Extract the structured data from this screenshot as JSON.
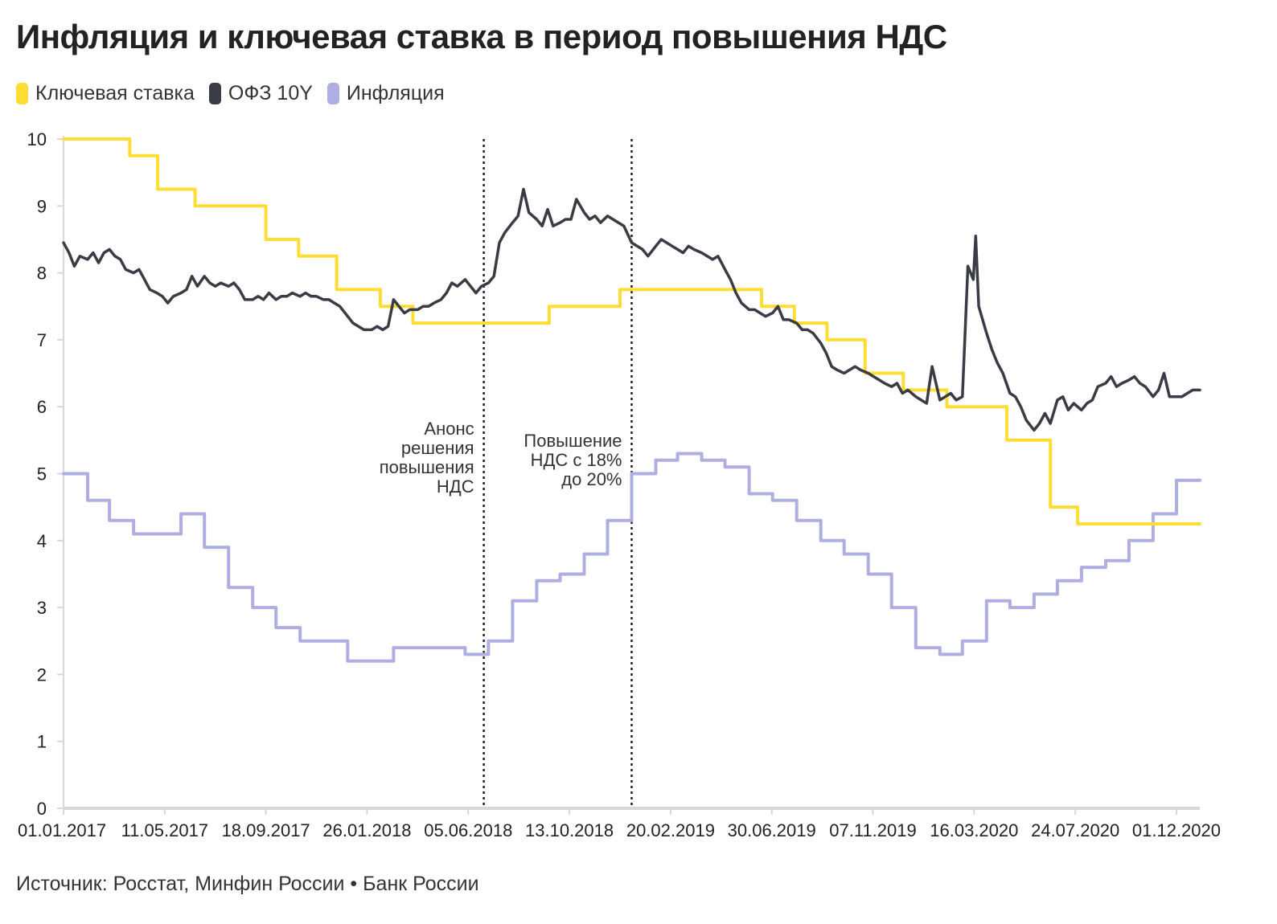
{
  "chart_data": {
    "type": "line",
    "title": "Инфляция и ключевая ставка в период повышения НДС",
    "source": "Источник: Росстат, Минфин России • Банк России",
    "ylim": [
      0,
      10
    ],
    "y_ticks": [
      "0",
      "1",
      "2",
      "3",
      "4",
      "5",
      "6",
      "7",
      "8",
      "9",
      "10"
    ],
    "x_range": [
      "2017-01-01",
      "2020-12-31"
    ],
    "x_tick_labels": [
      "01.01.2017",
      "11.05.2017",
      "18.09.2017",
      "26.01.2018",
      "05.06.2018",
      "13.10.2018",
      "20.02.2019",
      "30.06.2019",
      "07.11.2019",
      "16.03.2020",
      "24.07.2020",
      "01.12.2020"
    ],
    "x_tick_dates": [
      "2017-01-01",
      "2017-05-11",
      "2017-09-18",
      "2018-01-26",
      "2018-06-05",
      "2018-10-13",
      "2019-02-20",
      "2019-06-30",
      "2019-11-07",
      "2020-03-16",
      "2020-07-24",
      "2020-12-01"
    ],
    "legend_position": "top-left",
    "grid": false,
    "series": [
      {
        "name": "Ключевая ставка",
        "color": "#FFDD33",
        "step": true,
        "points": [
          [
            "2017-01-01",
            10.0
          ],
          [
            "2017-03-27",
            9.75
          ],
          [
            "2017-05-02",
            9.25
          ],
          [
            "2017-06-19",
            9.0
          ],
          [
            "2017-09-18",
            8.5
          ],
          [
            "2017-10-30",
            8.25
          ],
          [
            "2017-12-18",
            7.75
          ],
          [
            "2018-02-12",
            7.5
          ],
          [
            "2018-03-26",
            7.25
          ],
          [
            "2018-09-17",
            7.5
          ],
          [
            "2018-12-17",
            7.75
          ],
          [
            "2019-06-17",
            7.5
          ],
          [
            "2019-07-29",
            7.25
          ],
          [
            "2019-09-09",
            7.0
          ],
          [
            "2019-10-28",
            6.5
          ],
          [
            "2019-12-16",
            6.25
          ],
          [
            "2020-02-10",
            6.0
          ],
          [
            "2020-04-27",
            5.5
          ],
          [
            "2020-06-22",
            4.5
          ],
          [
            "2020-07-27",
            4.25
          ],
          [
            "2020-12-31",
            4.25
          ]
        ]
      },
      {
        "name": "ОФЗ 10Y",
        "color": "#3a3b45",
        "step": false,
        "points": [
          [
            "2017-01-01",
            8.45
          ],
          [
            "2017-01-08",
            8.3
          ],
          [
            "2017-01-15",
            8.1
          ],
          [
            "2017-01-22",
            8.25
          ],
          [
            "2017-02-01",
            8.2
          ],
          [
            "2017-02-08",
            8.3
          ],
          [
            "2017-02-15",
            8.15
          ],
          [
            "2017-02-22",
            8.3
          ],
          [
            "2017-03-01",
            8.35
          ],
          [
            "2017-03-08",
            8.25
          ],
          [
            "2017-03-15",
            8.2
          ],
          [
            "2017-03-22",
            8.05
          ],
          [
            "2017-04-01",
            8.0
          ],
          [
            "2017-04-08",
            8.05
          ],
          [
            "2017-04-15",
            7.9
          ],
          [
            "2017-04-22",
            7.75
          ],
          [
            "2017-05-01",
            7.7
          ],
          [
            "2017-05-08",
            7.65
          ],
          [
            "2017-05-15",
            7.55
          ],
          [
            "2017-05-22",
            7.65
          ],
          [
            "2017-06-01",
            7.7
          ],
          [
            "2017-06-08",
            7.75
          ],
          [
            "2017-06-15",
            7.95
          ],
          [
            "2017-06-22",
            7.8
          ],
          [
            "2017-07-01",
            7.95
          ],
          [
            "2017-07-08",
            7.85
          ],
          [
            "2017-07-15",
            7.8
          ],
          [
            "2017-07-22",
            7.85
          ],
          [
            "2017-08-01",
            7.8
          ],
          [
            "2017-08-08",
            7.85
          ],
          [
            "2017-08-15",
            7.75
          ],
          [
            "2017-08-22",
            7.6
          ],
          [
            "2017-09-01",
            7.6
          ],
          [
            "2017-09-08",
            7.65
          ],
          [
            "2017-09-15",
            7.6
          ],
          [
            "2017-09-22",
            7.7
          ],
          [
            "2017-10-01",
            7.6
          ],
          [
            "2017-10-08",
            7.65
          ],
          [
            "2017-10-15",
            7.65
          ],
          [
            "2017-10-22",
            7.7
          ],
          [
            "2017-11-01",
            7.65
          ],
          [
            "2017-11-08",
            7.7
          ],
          [
            "2017-11-15",
            7.65
          ],
          [
            "2017-11-22",
            7.65
          ],
          [
            "2017-12-01",
            7.6
          ],
          [
            "2017-12-08",
            7.6
          ],
          [
            "2017-12-15",
            7.55
          ],
          [
            "2017-12-22",
            7.5
          ],
          [
            "2018-01-01",
            7.35
          ],
          [
            "2018-01-08",
            7.25
          ],
          [
            "2018-01-15",
            7.2
          ],
          [
            "2018-01-22",
            7.15
          ],
          [
            "2018-02-01",
            7.15
          ],
          [
            "2018-02-08",
            7.2
          ],
          [
            "2018-02-15",
            7.15
          ],
          [
            "2018-02-22",
            7.2
          ],
          [
            "2018-03-01",
            7.6
          ],
          [
            "2018-03-08",
            7.5
          ],
          [
            "2018-03-15",
            7.4
          ],
          [
            "2018-03-22",
            7.45
          ],
          [
            "2018-04-01",
            7.45
          ],
          [
            "2018-04-08",
            7.5
          ],
          [
            "2018-04-15",
            7.5
          ],
          [
            "2018-04-22",
            7.55
          ],
          [
            "2018-05-01",
            7.6
          ],
          [
            "2018-05-08",
            7.7
          ],
          [
            "2018-05-15",
            7.85
          ],
          [
            "2018-05-22",
            7.8
          ],
          [
            "2018-06-01",
            7.9
          ],
          [
            "2018-06-08",
            7.8
          ],
          [
            "2018-06-15",
            7.7
          ],
          [
            "2018-06-22",
            7.8
          ],
          [
            "2018-07-01",
            7.85
          ],
          [
            "2018-07-08",
            7.95
          ],
          [
            "2018-07-15",
            8.45
          ],
          [
            "2018-07-22",
            8.6
          ],
          [
            "2018-08-01",
            8.75
          ],
          [
            "2018-08-08",
            8.85
          ],
          [
            "2018-08-15",
            9.25
          ],
          [
            "2018-08-22",
            8.9
          ],
          [
            "2018-09-01",
            8.8
          ],
          [
            "2018-09-08",
            8.7
          ],
          [
            "2018-09-15",
            8.95
          ],
          [
            "2018-09-22",
            8.7
          ],
          [
            "2018-10-01",
            8.75
          ],
          [
            "2018-10-08",
            8.8
          ],
          [
            "2018-10-15",
            8.8
          ],
          [
            "2018-10-22",
            9.1
          ],
          [
            "2018-11-01",
            8.9
          ],
          [
            "2018-11-08",
            8.8
          ],
          [
            "2018-11-15",
            8.85
          ],
          [
            "2018-11-22",
            8.75
          ],
          [
            "2018-12-01",
            8.85
          ],
          [
            "2018-12-08",
            8.8
          ],
          [
            "2018-12-15",
            8.75
          ],
          [
            "2018-12-22",
            8.7
          ],
          [
            "2019-01-01",
            8.45
          ],
          [
            "2019-01-08",
            8.4
          ],
          [
            "2019-01-15",
            8.35
          ],
          [
            "2019-01-22",
            8.25
          ],
          [
            "2019-02-01",
            8.4
          ],
          [
            "2019-02-08",
            8.5
          ],
          [
            "2019-02-15",
            8.45
          ],
          [
            "2019-02-22",
            8.4
          ],
          [
            "2019-03-01",
            8.35
          ],
          [
            "2019-03-08",
            8.3
          ],
          [
            "2019-03-15",
            8.4
          ],
          [
            "2019-03-22",
            8.35
          ],
          [
            "2019-04-01",
            8.3
          ],
          [
            "2019-04-08",
            8.25
          ],
          [
            "2019-04-15",
            8.2
          ],
          [
            "2019-04-22",
            8.25
          ],
          [
            "2019-05-01",
            8.05
          ],
          [
            "2019-05-08",
            7.9
          ],
          [
            "2019-05-15",
            7.7
          ],
          [
            "2019-05-22",
            7.55
          ],
          [
            "2019-06-01",
            7.45
          ],
          [
            "2019-06-08",
            7.45
          ],
          [
            "2019-06-15",
            7.4
          ],
          [
            "2019-06-22",
            7.35
          ],
          [
            "2019-07-01",
            7.4
          ],
          [
            "2019-07-08",
            7.5
          ],
          [
            "2019-07-15",
            7.3
          ],
          [
            "2019-07-22",
            7.3
          ],
          [
            "2019-08-01",
            7.25
          ],
          [
            "2019-08-08",
            7.15
          ],
          [
            "2019-08-15",
            7.15
          ],
          [
            "2019-08-22",
            7.1
          ],
          [
            "2019-09-01",
            6.95
          ],
          [
            "2019-09-08",
            6.8
          ],
          [
            "2019-09-15",
            6.6
          ],
          [
            "2019-09-22",
            6.55
          ],
          [
            "2019-10-01",
            6.5
          ],
          [
            "2019-10-08",
            6.55
          ],
          [
            "2019-10-15",
            6.6
          ],
          [
            "2019-10-22",
            6.55
          ],
          [
            "2019-11-01",
            6.5
          ],
          [
            "2019-11-08",
            6.45
          ],
          [
            "2019-11-15",
            6.4
          ],
          [
            "2019-11-22",
            6.35
          ],
          [
            "2019-12-01",
            6.3
          ],
          [
            "2019-12-08",
            6.35
          ],
          [
            "2019-12-15",
            6.2
          ],
          [
            "2019-12-22",
            6.25
          ],
          [
            "2020-01-01",
            6.15
          ],
          [
            "2020-01-08",
            6.1
          ],
          [
            "2020-01-15",
            6.05
          ],
          [
            "2020-01-22",
            6.6
          ],
          [
            "2020-02-01",
            6.1
          ],
          [
            "2020-02-08",
            6.15
          ],
          [
            "2020-02-15",
            6.2
          ],
          [
            "2020-02-22",
            6.1
          ],
          [
            "2020-03-01",
            6.15
          ],
          [
            "2020-03-08",
            8.1
          ],
          [
            "2020-03-15",
            7.9
          ],
          [
            "2020-03-18",
            8.55
          ],
          [
            "2020-03-22",
            7.5
          ],
          [
            "2020-04-01",
            7.1
          ],
          [
            "2020-04-08",
            6.85
          ],
          [
            "2020-04-15",
            6.65
          ],
          [
            "2020-04-22",
            6.5
          ],
          [
            "2020-05-01",
            6.2
          ],
          [
            "2020-05-08",
            6.15
          ],
          [
            "2020-05-15",
            6.0
          ],
          [
            "2020-05-22",
            5.8
          ],
          [
            "2020-06-01",
            5.65
          ],
          [
            "2020-06-08",
            5.75
          ],
          [
            "2020-06-15",
            5.9
          ],
          [
            "2020-06-22",
            5.75
          ],
          [
            "2020-07-01",
            6.1
          ],
          [
            "2020-07-08",
            6.15
          ],
          [
            "2020-07-15",
            5.95
          ],
          [
            "2020-07-22",
            6.05
          ],
          [
            "2020-08-01",
            5.95
          ],
          [
            "2020-08-08",
            6.05
          ],
          [
            "2020-08-15",
            6.1
          ],
          [
            "2020-08-22",
            6.3
          ],
          [
            "2020-09-01",
            6.35
          ],
          [
            "2020-09-08",
            6.45
          ],
          [
            "2020-09-15",
            6.3
          ],
          [
            "2020-09-22",
            6.35
          ],
          [
            "2020-10-01",
            6.4
          ],
          [
            "2020-10-08",
            6.45
          ],
          [
            "2020-10-15",
            6.35
          ],
          [
            "2020-10-22",
            6.3
          ],
          [
            "2020-11-01",
            6.15
          ],
          [
            "2020-11-08",
            6.25
          ],
          [
            "2020-11-15",
            6.5
          ],
          [
            "2020-11-22",
            6.15
          ],
          [
            "2020-12-01",
            6.15
          ],
          [
            "2020-12-08",
            6.15
          ],
          [
            "2020-12-15",
            6.2
          ],
          [
            "2020-12-22",
            6.25
          ],
          [
            "2020-12-31",
            6.25
          ]
        ]
      },
      {
        "name": "Инфляция",
        "color": "#AEAEE3",
        "step": true,
        "points": [
          [
            "2017-01-01",
            5.0
          ],
          [
            "2017-02-01",
            4.6
          ],
          [
            "2017-03-01",
            4.3
          ],
          [
            "2017-04-01",
            4.1
          ],
          [
            "2017-06-01",
            4.4
          ],
          [
            "2017-07-01",
            3.9
          ],
          [
            "2017-08-01",
            3.3
          ],
          [
            "2017-09-01",
            3.0
          ],
          [
            "2017-10-01",
            2.7
          ],
          [
            "2017-11-01",
            2.5
          ],
          [
            "2018-01-01",
            2.2
          ],
          [
            "2018-03-01",
            2.4
          ],
          [
            "2018-06-01",
            2.3
          ],
          [
            "2018-07-01",
            2.5
          ],
          [
            "2018-08-01",
            3.1
          ],
          [
            "2018-09-01",
            3.4
          ],
          [
            "2018-10-01",
            3.5
          ],
          [
            "2018-11-01",
            3.8
          ],
          [
            "2018-12-01",
            4.3
          ],
          [
            "2019-01-01",
            5.0
          ],
          [
            "2019-02-01",
            5.2
          ],
          [
            "2019-03-01",
            5.3
          ],
          [
            "2019-04-01",
            5.2
          ],
          [
            "2019-05-01",
            5.1
          ],
          [
            "2019-06-01",
            4.7
          ],
          [
            "2019-07-01",
            4.6
          ],
          [
            "2019-08-01",
            4.3
          ],
          [
            "2019-09-01",
            4.0
          ],
          [
            "2019-10-01",
            3.8
          ],
          [
            "2019-11-01",
            3.5
          ],
          [
            "2019-12-01",
            3.0
          ],
          [
            "2020-01-01",
            2.4
          ],
          [
            "2020-02-01",
            2.3
          ],
          [
            "2020-03-01",
            2.5
          ],
          [
            "2020-04-01",
            3.1
          ],
          [
            "2020-05-01",
            3.0
          ],
          [
            "2020-06-01",
            3.2
          ],
          [
            "2020-07-01",
            3.4
          ],
          [
            "2020-08-01",
            3.6
          ],
          [
            "2020-09-01",
            3.7
          ],
          [
            "2020-10-01",
            4.0
          ],
          [
            "2020-11-01",
            4.4
          ],
          [
            "2020-12-01",
            4.9
          ],
          [
            "2020-12-31",
            4.9
          ]
        ]
      }
    ],
    "annotations": [
      {
        "date": "2018-06-25",
        "lines": [
          "Анонс",
          "решения",
          "повышения",
          "НДС"
        ]
      },
      {
        "date": "2019-01-01",
        "lines": [
          "Повышение",
          "НДС с 18%",
          "до 20%"
        ]
      }
    ]
  }
}
